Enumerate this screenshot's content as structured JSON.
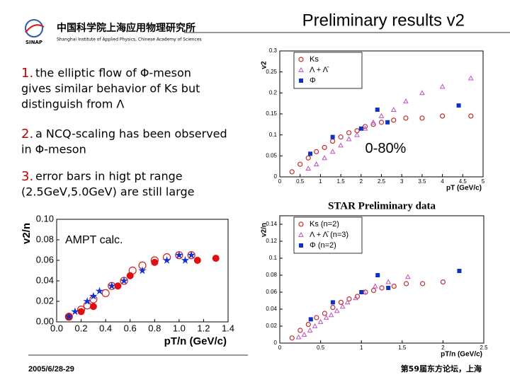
{
  "slide": {
    "header": {
      "logo": "SINAP",
      "institute_cn": "中国科学院上海应用物理研究所",
      "institute_en": "Shanghai Institute of Applied Physics, Chinese Academy of Sciences",
      "title": "Preliminary results v2"
    },
    "bullets": [
      {
        "number": "1.",
        "lines": [
          "the elliptic flow of Φ-meson",
          "gives similar behavior of Ks but",
          "distinguish from Λ"
        ]
      },
      {
        "number": "2.",
        "lines": [
          "a NCQ-scaling has been observed",
          "in Φ-meson"
        ]
      },
      {
        "number": "3.",
        "lines": [
          "error bars in higt pt range",
          "(2.5GeV,5.0GeV) are still large"
        ]
      }
    ],
    "footer": {
      "date": "2005/6/28-29",
      "event": "第59届东方论坛，上海"
    }
  },
  "chart_data": [
    {
      "type": "scatter",
      "ylabel": "v2",
      "xlabel": "pT (GeV/c)",
      "annotation": "0-80%",
      "legend": "top-left",
      "xlim": [
        0,
        5
      ],
      "ylim": [
        0,
        0.3
      ],
      "xticks": [
        0,
        0.5,
        1,
        1.5,
        2,
        2.5,
        3,
        3.5,
        4,
        4.5,
        5
      ],
      "yticks": [
        0,
        0.05,
        0.1,
        0.15,
        0.2,
        0.25,
        0.3
      ],
      "series": [
        {
          "name": "Ks",
          "color": "#c03030",
          "marker": "circle",
          "x": [
            0.3,
            0.5,
            0.7,
            0.9,
            1.1,
            1.3,
            1.5,
            1.7,
            1.9,
            2.1,
            2.3,
            2.5,
            2.8,
            3.1,
            3.5,
            4.0,
            4.7
          ],
          "values": [
            0.012,
            0.03,
            0.045,
            0.06,
            0.07,
            0.085,
            0.095,
            0.105,
            0.11,
            0.12,
            0.125,
            0.13,
            0.135,
            0.14,
            0.14,
            0.145,
            0.145
          ]
        },
        {
          "name": "Λ + Λ̄",
          "color": "#c050c0",
          "marker": "triangle",
          "x": [
            0.7,
            0.9,
            1.1,
            1.3,
            1.5,
            1.7,
            1.9,
            2.1,
            2.3,
            2.5,
            2.8,
            3.1,
            3.5,
            4.0,
            4.7
          ],
          "values": [
            0.02,
            0.03,
            0.045,
            0.06,
            0.075,
            0.09,
            0.1,
            0.115,
            0.13,
            0.145,
            0.16,
            0.18,
            0.2,
            0.215,
            0.235
          ]
        },
        {
          "name": "Φ",
          "color": "#1030c0",
          "marker": "square",
          "x": [
            0.75,
            1.3,
            2.0,
            2.4,
            2.65,
            4.4
          ],
          "values": [
            0.055,
            0.095,
            0.115,
            0.16,
            0.13,
            0.17
          ]
        }
      ]
    },
    {
      "type": "scatter",
      "title": "STAR Preliminary data",
      "ylabel": "v2/n",
      "xlabel": "pT/n (GeV/c)",
      "legend": "top-left",
      "xlim": [
        0,
        2.5
      ],
      "ylim": [
        0,
        0.15
      ],
      "xticks": [
        0,
        0.5,
        1,
        1.5,
        2,
        2.5
      ],
      "yticks": [
        0,
        0.02,
        0.04,
        0.06,
        0.08,
        0.1,
        0.12,
        0.14
      ],
      "series": [
        {
          "name": "Ks (n=2)",
          "color": "#c03030",
          "marker": "circle",
          "x": [
            0.15,
            0.25,
            0.35,
            0.45,
            0.55,
            0.65,
            0.75,
            0.85,
            0.95,
            1.05,
            1.15,
            1.25,
            1.4,
            1.55,
            1.75,
            2.0
          ],
          "values": [
            0.006,
            0.015,
            0.022,
            0.03,
            0.035,
            0.042,
            0.048,
            0.052,
            0.055,
            0.06,
            0.062,
            0.065,
            0.067,
            0.07,
            0.07,
            0.072
          ]
        },
        {
          "name": "Λ + Λ̄ (n=3)",
          "color": "#c050c0",
          "marker": "triangle",
          "x": [
            0.23,
            0.3,
            0.37,
            0.43,
            0.5,
            0.57,
            0.63,
            0.7,
            0.77,
            0.83,
            0.93,
            1.03,
            1.17,
            1.33,
            1.57
          ],
          "values": [
            0.007,
            0.01,
            0.015,
            0.02,
            0.025,
            0.03,
            0.033,
            0.038,
            0.043,
            0.048,
            0.053,
            0.06,
            0.067,
            0.072,
            0.078
          ]
        },
        {
          "name": "Φ (n=2)",
          "color": "#1030c0",
          "marker": "square",
          "x": [
            0.38,
            0.65,
            1.0,
            1.2,
            1.33,
            2.2
          ],
          "values": [
            0.028,
            0.048,
            0.06,
            0.08,
            0.065,
            0.085
          ]
        }
      ]
    },
    {
      "type": "scatter",
      "ylabel": "v2/n",
      "xlabel": "pT/n (GeV/c)",
      "annotation": "AMPT calc.",
      "xlim": [
        0,
        1.4
      ],
      "ylim": [
        0,
        0.1
      ],
      "xticks": [
        {
          "value": 0,
          "label": "0.0"
        },
        0.2,
        0.4,
        0.6,
        0.8,
        {
          "value": 1,
          "label": "1.0"
        },
        1.2,
        1.4
      ],
      "yticks": [
        {
          "value": 0,
          "label": "0.00"
        },
        0.02,
        0.04,
        0.06,
        0.08,
        {
          "value": 0.1,
          "label": "0.10"
        }
      ],
      "series": [
        {
          "color": "#d02020",
          "marker": "circle",
          "x": [
            0.1,
            0.2,
            0.25,
            0.3,
            0.4,
            0.45,
            0.55,
            0.62,
            0.7,
            0.8,
            0.9,
            1.0,
            1.1
          ],
          "values": [
            0.005,
            0.012,
            0.016,
            0.022,
            0.028,
            0.035,
            0.04,
            0.05,
            0.055,
            0.06,
            0.063,
            0.065,
            0.065
          ]
        },
        {
          "color": "#e01010",
          "marker": "filled-circle",
          "x": [
            0.1,
            0.2,
            0.3,
            0.5,
            0.6,
            0.8,
            1.15,
            1.3
          ],
          "values": [
            0.005,
            0.01,
            0.015,
            0.035,
            0.045,
            0.058,
            0.06,
            0.062
          ]
        },
        {
          "color": "#1030d0",
          "marker": "star",
          "x": [
            0.1,
            0.15,
            0.25,
            0.3,
            0.35,
            0.45,
            0.55,
            0.7,
            0.9,
            1.0,
            1.05,
            1.1
          ],
          "values": [
            0.005,
            0.01,
            0.02,
            0.025,
            0.03,
            0.035,
            0.04,
            0.05,
            0.06,
            0.065,
            0.06,
            0.065
          ]
        }
      ]
    }
  ]
}
